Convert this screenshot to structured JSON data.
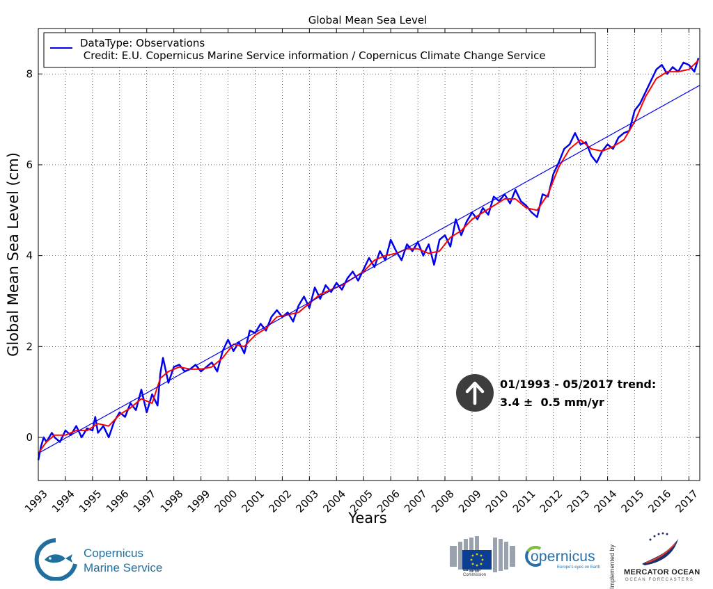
{
  "chart_data": {
    "type": "line",
    "title": "Global Mean Sea Level",
    "xlabel": "Years",
    "ylabel": "Global Mean Sea Level (cm)",
    "xlim": [
      1993.0,
      2017.4
    ],
    "ylim": [
      -0.95,
      9.0
    ],
    "xticks": [
      "1993",
      "1994",
      "1995",
      "1996",
      "1997",
      "1998",
      "1999",
      "2000",
      "2001",
      "2002",
      "2003",
      "2004",
      "2005",
      "2006",
      "2007",
      "2008",
      "2009",
      "2010",
      "2011",
      "2012",
      "2013",
      "2014",
      "2015",
      "2016",
      "2017"
    ],
    "yticks": [
      0,
      2,
      4,
      6,
      8
    ],
    "grid": true,
    "legend": {
      "placement": "top-left",
      "entries": [
        "DataType: Observations",
        " Credit: E.U. Copernicus Marine Service information / Copernicus Climate Change Service"
      ]
    },
    "series": [
      {
        "name": "DataType: Observations",
        "color": "#0000ee",
        "x": [
          1993.0,
          1993.1,
          1993.2,
          1993.3,
          1993.5,
          1993.6,
          1993.8,
          1994.0,
          1994.2,
          1994.4,
          1994.6,
          1994.8,
          1995.0,
          1995.1,
          1995.2,
          1995.4,
          1995.6,
          1995.8,
          1996.0,
          1996.2,
          1996.4,
          1996.6,
          1996.8,
          1997.0,
          1997.2,
          1997.4,
          1997.5,
          1997.6,
          1997.8,
          1998.0,
          1998.2,
          1998.4,
          1998.6,
          1998.8,
          1999.0,
          1999.2,
          1999.4,
          1999.6,
          1999.8,
          2000.0,
          2000.2,
          2000.4,
          2000.6,
          2000.8,
          2001.0,
          2001.2,
          2001.4,
          2001.6,
          2001.8,
          2002.0,
          2002.2,
          2002.4,
          2002.6,
          2002.8,
          2003.0,
          2003.2,
          2003.4,
          2003.6,
          2003.8,
          2004.0,
          2004.2,
          2004.4,
          2004.6,
          2004.8,
          2005.0,
          2005.2,
          2005.4,
          2005.6,
          2005.8,
          2006.0,
          2006.2,
          2006.4,
          2006.6,
          2006.8,
          2007.0,
          2007.2,
          2007.4,
          2007.6,
          2007.8,
          2008.0,
          2008.2,
          2008.4,
          2008.6,
          2008.8,
          2009.0,
          2009.2,
          2009.4,
          2009.6,
          2009.8,
          2010.0,
          2010.2,
          2010.4,
          2010.6,
          2010.8,
          2011.0,
          2011.2,
          2011.4,
          2011.6,
          2011.8,
          2012.0,
          2012.2,
          2012.4,
          2012.6,
          2012.8,
          2013.0,
          2013.2,
          2013.4,
          2013.6,
          2013.8,
          2014.0,
          2014.2,
          2014.4,
          2014.6,
          2014.8,
          2015.0,
          2015.2,
          2015.4,
          2015.6,
          2015.8,
          2016.0,
          2016.2,
          2016.4,
          2016.6,
          2016.8,
          2017.0,
          2017.2,
          2017.35
        ],
        "y": [
          -0.5,
          -0.2,
          0.0,
          -0.1,
          0.1,
          0.0,
          -0.1,
          0.15,
          0.05,
          0.25,
          0.0,
          0.2,
          0.15,
          0.45,
          0.1,
          0.25,
          0.0,
          0.35,
          0.55,
          0.45,
          0.75,
          0.6,
          1.05,
          0.55,
          0.95,
          0.7,
          1.4,
          1.75,
          1.2,
          1.55,
          1.6,
          1.45,
          1.5,
          1.6,
          1.45,
          1.55,
          1.65,
          1.45,
          1.9,
          2.15,
          1.9,
          2.1,
          1.85,
          2.35,
          2.3,
          2.5,
          2.35,
          2.65,
          2.8,
          2.65,
          2.75,
          2.55,
          2.9,
          3.1,
          2.85,
          3.3,
          3.05,
          3.35,
          3.2,
          3.4,
          3.25,
          3.5,
          3.65,
          3.45,
          3.7,
          3.95,
          3.75,
          4.1,
          3.9,
          4.35,
          4.1,
          3.9,
          4.25,
          4.1,
          4.3,
          4.0,
          4.25,
          3.8,
          4.35,
          4.45,
          4.2,
          4.8,
          4.45,
          4.75,
          4.95,
          4.8,
          5.05,
          4.9,
          5.3,
          5.2,
          5.35,
          5.15,
          5.45,
          5.2,
          5.1,
          4.95,
          4.85,
          5.35,
          5.3,
          5.8,
          6.05,
          6.35,
          6.45,
          6.7,
          6.45,
          6.5,
          6.2,
          6.05,
          6.3,
          6.45,
          6.35,
          6.6,
          6.7,
          6.75,
          7.2,
          7.35,
          7.6,
          7.85,
          8.1,
          8.2,
          8.0,
          8.15,
          8.05,
          8.25,
          8.2,
          8.05,
          8.35
        ]
      },
      {
        "name": "",
        "color": "#ff0000",
        "x": [
          1993.0,
          1993.3,
          1993.6,
          1994.0,
          1994.4,
          1994.8,
          1995.2,
          1995.6,
          1996.0,
          1996.4,
          1996.8,
          1997.2,
          1997.5,
          1997.8,
          1998.2,
          1998.6,
          1999.0,
          1999.4,
          1999.8,
          2000.2,
          2000.6,
          2001.0,
          2001.4,
          2001.8,
          2002.2,
          2002.6,
          2003.0,
          2003.4,
          2003.8,
          2004.2,
          2004.6,
          2005.0,
          2005.4,
          2005.8,
          2006.2,
          2006.6,
          2007.0,
          2007.4,
          2007.8,
          2008.2,
          2008.6,
          2009.0,
          2009.4,
          2009.8,
          2010.2,
          2010.6,
          2011.0,
          2011.4,
          2011.8,
          2012.2,
          2012.6,
          2013.0,
          2013.4,
          2013.8,
          2014.2,
          2014.6,
          2015.0,
          2015.4,
          2015.8,
          2016.2,
          2016.6,
          2017.0,
          2017.35
        ],
        "y": [
          -0.35,
          -0.1,
          0.05,
          0.05,
          0.15,
          0.15,
          0.3,
          0.25,
          0.5,
          0.65,
          0.85,
          0.75,
          1.3,
          1.45,
          1.55,
          1.5,
          1.5,
          1.55,
          1.75,
          2.05,
          2.0,
          2.25,
          2.4,
          2.65,
          2.7,
          2.75,
          2.95,
          3.15,
          3.25,
          3.35,
          3.5,
          3.65,
          3.9,
          4.0,
          4.05,
          4.15,
          4.15,
          4.05,
          4.1,
          4.4,
          4.55,
          4.8,
          4.95,
          5.1,
          5.25,
          5.25,
          5.05,
          5.0,
          5.35,
          5.95,
          6.35,
          6.55,
          6.35,
          6.3,
          6.4,
          6.55,
          6.95,
          7.5,
          7.9,
          8.05,
          8.05,
          8.1,
          8.3
        ]
      },
      {
        "name": "",
        "color": "#0000ee",
        "x": [
          1993.0,
          2017.4
        ],
        "y": [
          -0.35,
          7.75
        ]
      }
    ],
    "annotation": {
      "line1": "01/1993 - 05/2017 trend:",
      "line2": "3.4 ±  0.5 mm/yr",
      "icon": "up-arrow-icon"
    }
  },
  "footer": {
    "cms_line1": "Copernicus",
    "cms_line2": "Marine Service",
    "eu_caption1": "European",
    "eu_caption2": "Commission",
    "copernicus_word": "opernicus",
    "copernicus_tagline": "Europe's eyes on Earth",
    "implemented_by": "Implemented by",
    "mercator_name": "MERCATOR OCEAN",
    "mercator_sub": "OCEAN FORECASTERS"
  }
}
